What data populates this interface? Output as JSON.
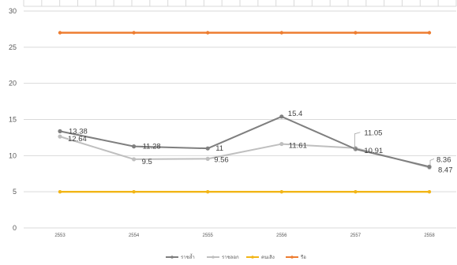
{
  "chart_data": {
    "type": "line",
    "categories": [
      "2553",
      "2554",
      "2555",
      "2556",
      "2557",
      "2558"
    ],
    "ylim": [
      0,
      30
    ],
    "yticks": [
      "0",
      "5",
      "10",
      "15",
      "20",
      "25",
      "30"
    ],
    "grid": true,
    "legend_position": "bottom",
    "series": [
      {
        "name": "ราชล้ำ",
        "color": "#7f7f7f",
        "values": [
          13.38,
          11.28,
          11,
          15.4,
          10.91,
          8.47
        ],
        "labels": [
          "13.38",
          "11.28",
          "11",
          "15.4",
          "10.91",
          "8.47"
        ]
      },
      {
        "name": "ราชลอก",
        "color": "#bfbfbf",
        "values": [
          12.64,
          9.5,
          9.56,
          11.61,
          11.05,
          8.36
        ],
        "labels": [
          "12.64",
          "9.5",
          "9.56",
          "11.61",
          "11.05",
          "8.36"
        ]
      },
      {
        "name": "คนเสิง",
        "color": "#f2b516",
        "values": [
          5,
          5,
          5,
          5,
          5,
          5
        ],
        "labels": []
      },
      {
        "name": "รือ",
        "color": "#ed7d31",
        "values": [
          27,
          27,
          27,
          27,
          27,
          27
        ],
        "labels": []
      }
    ]
  }
}
